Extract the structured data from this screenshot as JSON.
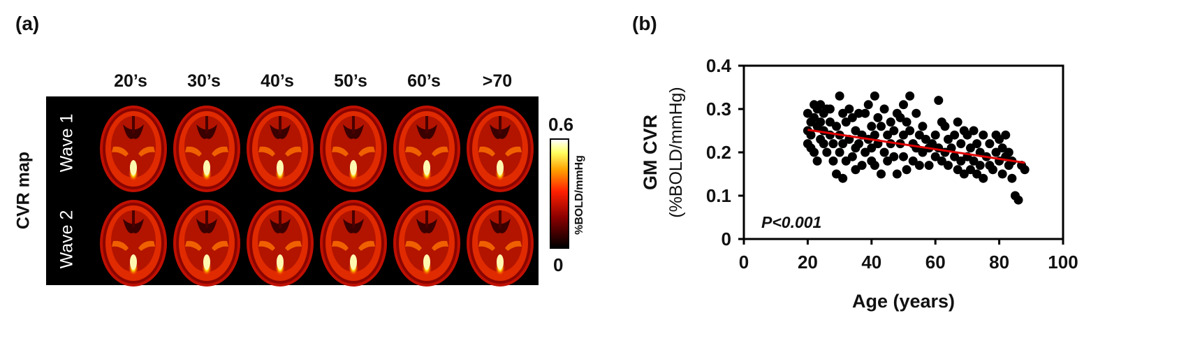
{
  "panel_a": {
    "label": "(a)",
    "side_label": "CVR map",
    "columns": [
      "20’s",
      "30’s",
      "40’s",
      "50’s",
      "60’s",
      ">70"
    ],
    "rows": [
      "Wave 1",
      "Wave 2"
    ],
    "colorbar": {
      "max": "0.6",
      "min": "0",
      "unit": "%BOLD/mmHg",
      "colors": [
        "#000000",
        "#8b0000",
        "#ff2000",
        "#ffa000",
        "#ffff60",
        "#ffffff"
      ]
    }
  },
  "panel_b": {
    "label": "(b)",
    "annotation": "P<0.001"
  },
  "chart_data": {
    "type": "scatter",
    "xlabel": "Age (years)",
    "ylabel": "GM CVR",
    "ylabel2": "(%BOLD/mmHg)",
    "xlim": [
      0,
      100
    ],
    "ylim": [
      0,
      0.4
    ],
    "xticks": [
      "0",
      "20",
      "40",
      "60",
      "80",
      "100"
    ],
    "yticks": [
      "0",
      "0.1",
      "0.2",
      "0.3",
      "0.4"
    ],
    "grid": false,
    "marker_color": "#000000",
    "fit_line": {
      "color": "#e00000",
      "x": [
        20,
        88
      ],
      "y": [
        0.252,
        0.176
      ]
    },
    "points": [
      [
        20,
        0.29
      ],
      [
        20,
        0.25
      ],
      [
        20,
        0.22
      ],
      [
        21,
        0.27
      ],
      [
        21,
        0.21
      ],
      [
        21,
        0.24
      ],
      [
        22,
        0.28
      ],
      [
        22,
        0.2
      ],
      [
        22,
        0.31
      ],
      [
        23,
        0.3
      ],
      [
        23,
        0.18
      ],
      [
        23,
        0.26
      ],
      [
        24,
        0.31
      ],
      [
        24,
        0.23
      ],
      [
        24,
        0.27
      ],
      [
        25,
        0.29
      ],
      [
        25,
        0.22
      ],
      [
        25,
        0.25
      ],
      [
        26,
        0.3
      ],
      [
        26,
        0.2
      ],
      [
        27,
        0.27
      ],
      [
        27,
        0.24
      ],
      [
        27,
        0.3
      ],
      [
        28,
        0.22
      ],
      [
        28,
        0.18
      ],
      [
        29,
        0.26
      ],
      [
        29,
        0.15
      ],
      [
        30,
        0.33
      ],
      [
        30,
        0.24
      ],
      [
        30,
        0.2
      ],
      [
        31,
        0.14
      ],
      [
        31,
        0.29
      ],
      [
        31,
        0.22
      ],
      [
        32,
        0.27
      ],
      [
        32,
        0.18
      ],
      [
        33,
        0.3
      ],
      [
        33,
        0.23
      ],
      [
        34,
        0.28
      ],
      [
        34,
        0.19
      ],
      [
        35,
        0.25
      ],
      [
        35,
        0.16
      ],
      [
        35,
        0.21
      ],
      [
        36,
        0.22
      ],
      [
        36,
        0.29
      ],
      [
        37,
        0.17
      ],
      [
        37,
        0.24
      ],
      [
        38,
        0.29
      ],
      [
        38,
        0.2
      ],
      [
        39,
        0.23
      ],
      [
        39,
        0.31
      ],
      [
        40,
        0.26
      ],
      [
        40,
        0.18
      ],
      [
        40,
        0.21
      ],
      [
        41,
        0.33
      ],
      [
        41,
        0.24
      ],
      [
        41,
        0.17
      ],
      [
        42,
        0.28
      ],
      [
        42,
        0.22
      ],
      [
        43,
        0.15
      ],
      [
        43,
        0.26
      ],
      [
        44,
        0.3
      ],
      [
        44,
        0.2
      ],
      [
        45,
        0.24
      ],
      [
        45,
        0.18
      ],
      [
        46,
        0.27
      ],
      [
        46,
        0.22
      ],
      [
        47,
        0.25
      ],
      [
        47,
        0.19
      ],
      [
        48,
        0.29
      ],
      [
        48,
        0.15
      ],
      [
        49,
        0.28
      ],
      [
        49,
        0.22
      ],
      [
        50,
        0.31
      ],
      [
        50,
        0.24
      ],
      [
        50,
        0.19
      ],
      [
        51,
        0.27
      ],
      [
        51,
        0.16
      ],
      [
        52,
        0.33
      ],
      [
        52,
        0.25
      ],
      [
        53,
        0.22
      ],
      [
        53,
        0.18
      ],
      [
        54,
        0.29
      ],
      [
        54,
        0.21
      ],
      [
        55,
        0.24
      ],
      [
        55,
        0.17
      ],
      [
        56,
        0.26
      ],
      [
        56,
        0.2
      ],
      [
        57,
        0.23
      ],
      [
        58,
        0.21
      ],
      [
        58,
        0.17
      ],
      [
        59,
        0.22
      ],
      [
        60,
        0.24
      ],
      [
        60,
        0.19
      ],
      [
        61,
        0.32
      ],
      [
        61,
        0.21
      ],
      [
        62,
        0.27
      ],
      [
        62,
        0.18
      ],
      [
        63,
        0.26
      ],
      [
        63,
        0.2
      ],
      [
        64,
        0.23
      ],
      [
        64,
        0.17
      ],
      [
        65,
        0.21
      ],
      [
        66,
        0.19
      ],
      [
        66,
        0.24
      ],
      [
        67,
        0.16
      ],
      [
        67,
        0.27
      ],
      [
        68,
        0.22
      ],
      [
        68,
        0.18
      ],
      [
        69,
        0.25
      ],
      [
        69,
        0.15
      ],
      [
        70,
        0.24
      ],
      [
        70,
        0.19
      ],
      [
        71,
        0.16
      ],
      [
        71,
        0.21
      ],
      [
        72,
        0.25
      ],
      [
        72,
        0.18
      ],
      [
        73,
        0.15
      ],
      [
        73,
        0.22
      ],
      [
        74,
        0.17
      ],
      [
        74,
        0.2
      ],
      [
        75,
        0.14
      ],
      [
        75,
        0.24
      ],
      [
        76,
        0.19
      ],
      [
        77,
        0.22
      ],
      [
        77,
        0.17
      ],
      [
        78,
        0.16
      ],
      [
        79,
        0.24
      ],
      [
        79,
        0.2
      ],
      [
        80,
        0.18
      ],
      [
        80,
        0.23
      ],
      [
        81,
        0.15
      ],
      [
        81,
        0.21
      ],
      [
        82,
        0.19
      ],
      [
        82,
        0.24
      ],
      [
        83,
        0.17
      ],
      [
        83,
        0.2
      ],
      [
        84,
        0.14
      ],
      [
        84,
        0.18
      ],
      [
        85,
        0.1
      ],
      [
        86,
        0.09
      ],
      [
        87,
        0.17
      ],
      [
        88,
        0.16
      ]
    ]
  }
}
